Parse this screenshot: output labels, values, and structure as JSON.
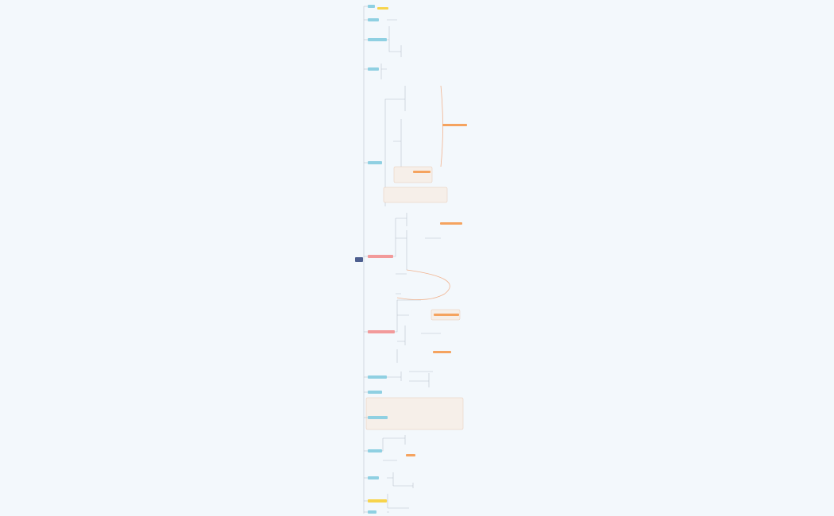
{
  "mindmap": {
    "root_color": "#4d5f8f",
    "branches": [
      {
        "color": "#8fd0e2"
      },
      {
        "color": "#8fd0e2"
      },
      {
        "color": "#8fd0e2"
      },
      {
        "color": "#8fd0e2"
      },
      {
        "color": "#8fd0e2"
      },
      {
        "color": "#f29a9a"
      },
      {
        "color": "#f29a9a"
      },
      {
        "color": "#8fd0e2"
      },
      {
        "color": "#8fd0e2"
      },
      {
        "color": "#8fd0e2"
      },
      {
        "color": "#8fd0e2"
      },
      {
        "color": "#8fd0e2"
      },
      {
        "color": "#f7d44c"
      },
      {
        "color": "#8fd0e2"
      }
    ],
    "highlight_color": "#f5a35f",
    "region_color": "#f6efe9"
  }
}
